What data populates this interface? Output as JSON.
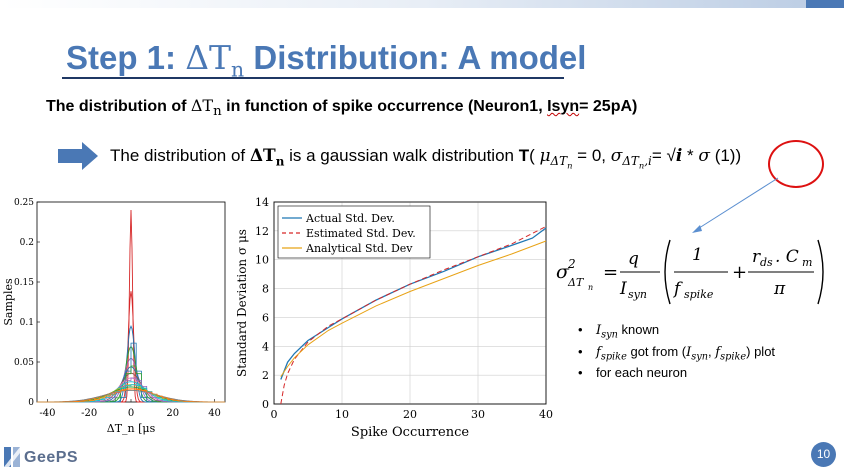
{
  "slide": {
    "title_prefix": "Step 1: ",
    "title_symbol": "ΔT",
    "title_sub": "n",
    "title_suffix": " Distribution: A model",
    "subtitle_pre": "The distribution of ",
    "subtitle_symbol": "ΔT",
    "subtitle_sub": "n",
    "subtitle_mid": " in function of spike occurrence (Neuron1, ",
    "subtitle_isyn": "Isyn",
    "subtitle_post": "= 25pA)",
    "bullet_pre": "The distribution of ",
    "bullet_symbol": "ΔT",
    "bullet_sub": "n",
    "bullet_mid": " is a gaussian walk distribution ",
    "bullet_T": "T",
    "bullet_paren": "( ",
    "bullet_mu": "μ",
    "bullet_mu_sub": "ΔT",
    "bullet_mu_sub2": "n",
    "bullet_eq0": " = 0, ",
    "bullet_sigma": "σ",
    "bullet_sigma_sub": "ΔT",
    "bullet_sigma_sub2": "n",
    "bullet_sigma_sub3": ",i",
    "bullet_eq": "= √",
    "bullet_i": "i",
    "bullet_star": " * ",
    "bullet_sigma2": "σ",
    "bullet_ref": " (1)",
    "bullet_close": ")",
    "formula": {
      "lhs": "σ",
      "lhs_sup": "2",
      "lhs_sub": "ΔT",
      "lhs_sub2": "n",
      "eq": "=",
      "q": "q",
      "isyn": "I",
      "isyn_sub": "syn",
      "one": "1",
      "f": "f",
      "f_sub": "spike",
      "plus": "+",
      "rds": "r",
      "rds_sub": "ds",
      "dot": ". C",
      "cm_sub": "m",
      "pi": "π"
    },
    "list": [
      {
        "sym": "I",
        "sub": "syn",
        "text": " known"
      },
      {
        "sym": "f",
        "sub": "spike",
        "text": " got from (",
        "sym2": "I",
        "sub2": "syn",
        "sep": ", ",
        "sym3": "f",
        "sub3": "spike",
        "text2": ") plot"
      },
      {
        "text": "for each neuron"
      }
    ],
    "logo_text": "GeePS",
    "page_number": "10"
  },
  "colors": {
    "title": "#4a78b5",
    "arrow": "#4a78b5",
    "circle": "#dd1111",
    "series_actual": "#1f77b4",
    "series_estimated": "#d62728",
    "series_analytical": "#e8a317"
  },
  "chart_data": [
    {
      "type": "line",
      "name": "distribution",
      "xlabel": "ΔT_n [μs",
      "ylabel": "Samples",
      "x_ticks": [
        "-40",
        "-20",
        "0",
        "20",
        "40"
      ],
      "y_ticks": [
        "0",
        "0.05",
        "0.1",
        "0.15",
        "0.2",
        "0.25"
      ],
      "xlim": [
        -45,
        45
      ],
      "ylim": [
        0,
        0.25
      ],
      "curves": [
        {
          "std": 0.75,
          "color": "#d62728"
        },
        {
          "std": 1.3,
          "color": "#d62728"
        },
        {
          "std": 1.9,
          "color": "#1f77b4"
        },
        {
          "std": 2.6,
          "color": "#2ca02c"
        },
        {
          "std": 3.3,
          "color": "#9467bd"
        },
        {
          "std": 4.1,
          "color": "#1f77b4"
        },
        {
          "std": 5.0,
          "color": "#8c564b"
        },
        {
          "std": 6.0,
          "color": "#e377c2"
        },
        {
          "std": 7.1,
          "color": "#17becf"
        },
        {
          "std": 8.3,
          "color": "#bcbd22"
        },
        {
          "std": 9.6,
          "color": "#2ca02c"
        },
        {
          "std": 11.0,
          "color": "#ff7f0e"
        },
        {
          "std": 12.4,
          "color": "#7f7f7f"
        }
      ],
      "box_curves": [
        {
          "std": 2.2,
          "color": "#1f77b4"
        },
        {
          "std": 3.6,
          "color": "#2ca02c"
        },
        {
          "std": 5.4,
          "color": "#9467bd"
        },
        {
          "std": 7.5,
          "color": "#17becf"
        },
        {
          "std": 9.8,
          "color": "#ff7f0e"
        }
      ]
    },
    {
      "type": "line",
      "name": "std-vs-occurrence",
      "xlabel": "Spike Occurrence",
      "ylabel": "Standard Deviation σ μs",
      "x_ticks": [
        "0",
        "10",
        "20",
        "30",
        "40"
      ],
      "y_ticks": [
        "0",
        "2",
        "4",
        "6",
        "8",
        "10",
        "12",
        "14"
      ],
      "xlim": [
        0,
        40
      ],
      "ylim": [
        0,
        14
      ],
      "legend_position": "top-left",
      "series": [
        {
          "name": "Actual Std. Dev.",
          "style": "solid",
          "color": "#1f77b4",
          "x": [
            1,
            2,
            3,
            5,
            8,
            10,
            15,
            20,
            25,
            30,
            35,
            38,
            40
          ],
          "y": [
            1.7,
            2.9,
            3.5,
            4.4,
            5.3,
            5.9,
            7.2,
            8.3,
            9.2,
            10.2,
            11.0,
            11.5,
            12.2
          ]
        },
        {
          "name": "Estimated Std. Dev.",
          "style": "dashed",
          "color": "#d62728",
          "x": [
            1,
            1.5,
            2,
            3,
            5,
            8,
            10,
            15,
            20,
            25,
            30,
            35,
            40
          ],
          "y": [
            0.0,
            1.3,
            2.1,
            3.1,
            4.3,
            5.4,
            5.9,
            7.2,
            8.3,
            9.3,
            10.2,
            11.1,
            12.3
          ]
        },
        {
          "name": "Analytical Std. Dev",
          "style": "solid",
          "color": "#e8a317",
          "x": [
            1,
            2,
            3,
            5,
            8,
            10,
            15,
            20,
            25,
            30,
            35,
            40
          ],
          "y": [
            1.9,
            2.6,
            3.2,
            4.1,
            5.1,
            5.6,
            6.8,
            7.8,
            8.7,
            9.6,
            10.4,
            11.3
          ]
        }
      ]
    }
  ]
}
